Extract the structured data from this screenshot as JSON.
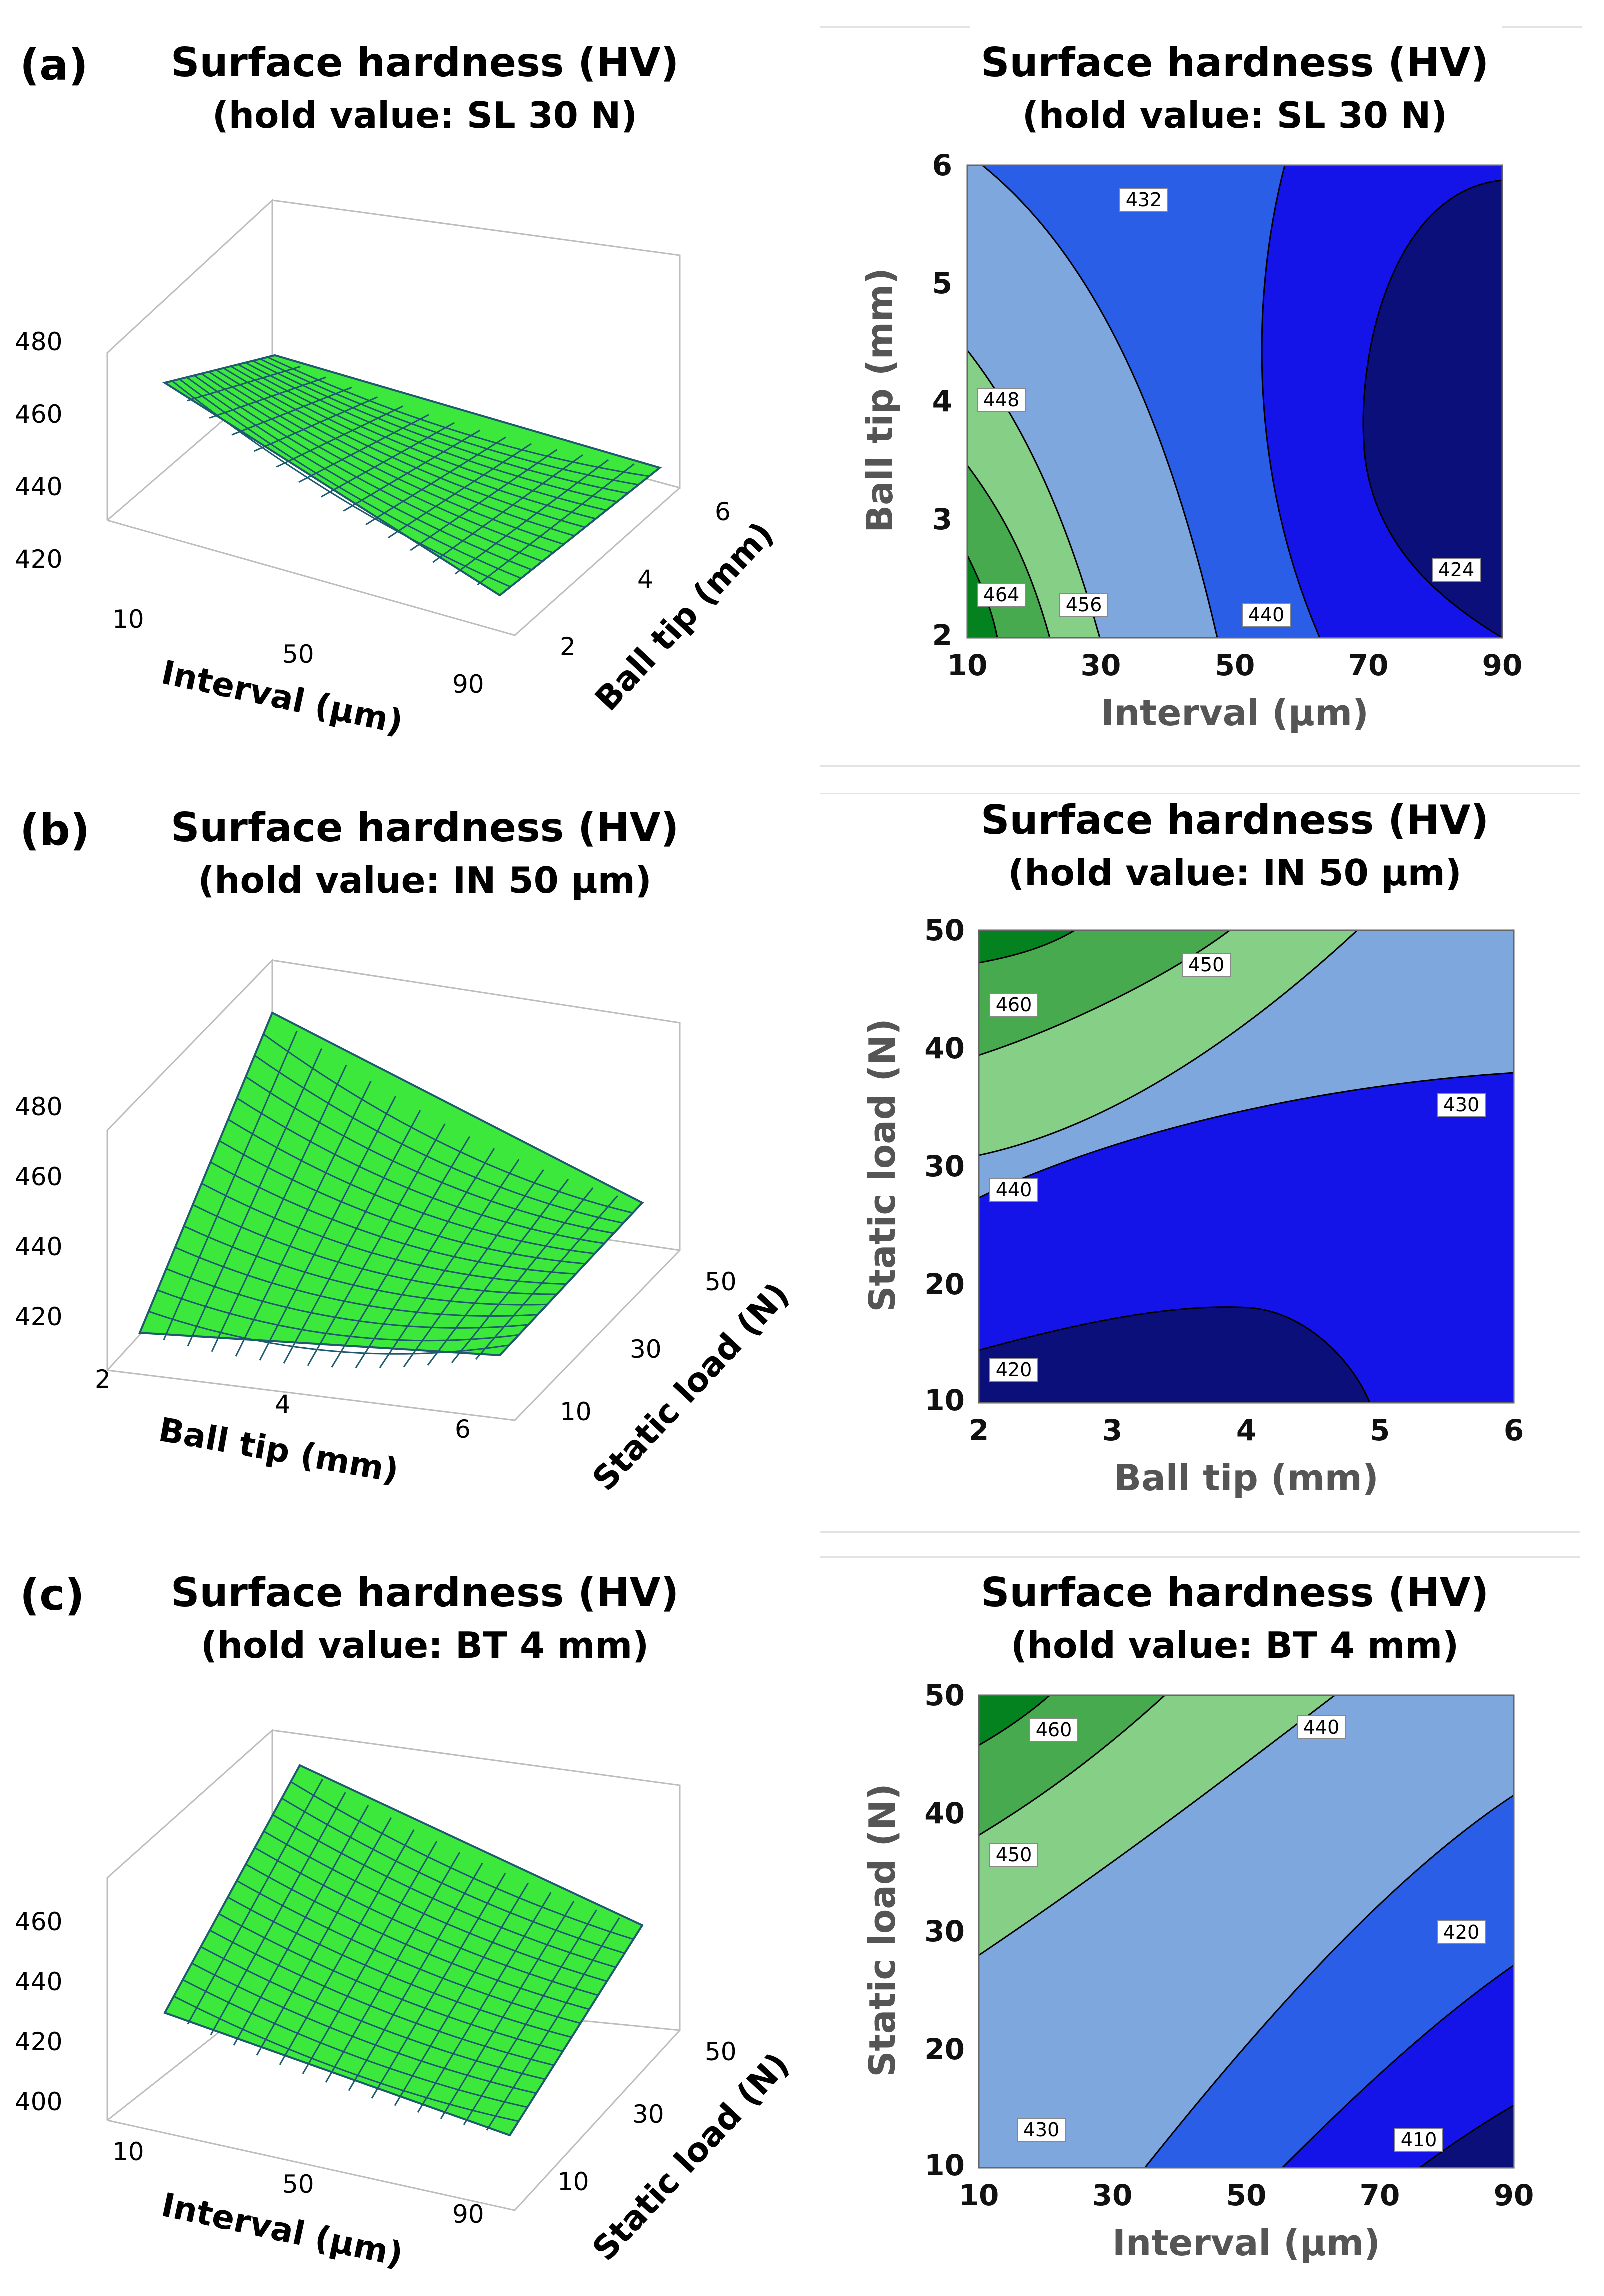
{
  "panels": {
    "a": {
      "letter": "(a)"
    },
    "b": {
      "letter": "(b)"
    },
    "c": {
      "letter": "(c)"
    }
  },
  "colors": {
    "surface_fill": "#3ce83c",
    "surface_grid": "#1e5a6e",
    "contour_levels_low_to_high": [
      "#0a0f7a",
      "#1414e8",
      "#2a5ee6",
      "#7da7dd",
      "#86cf86",
      "#48aa4e",
      "#058220"
    ]
  },
  "chart_data": [
    {
      "id": "a_surface",
      "type": "surface",
      "title": "Surface hardness (HV)",
      "subtitle": "(hold value: SL 30 N)",
      "xlabel": "Interval (µm)",
      "ylabel": "Ball tip (mm)",
      "x_ticks": [
        "10",
        "50",
        "90"
      ],
      "y_ticks": [
        "2",
        "4",
        "6"
      ],
      "z_ticks": [
        "420",
        "440",
        "460",
        "480"
      ],
      "xlim": [
        10,
        90
      ],
      "ylim": [
        2,
        6
      ],
      "zlim": [
        415,
        480
      ],
      "corner_z": {
        "x_min_y_min": 465,
        "x_max_y_min": 425,
        "x_min_y_max": 442,
        "x_max_y_max": 432
      }
    },
    {
      "id": "a_contour",
      "type": "contour",
      "title": "Surface hardness (HV)",
      "subtitle": "(hold value: SL 30 N)",
      "xlabel": "Interval (µm)",
      "ylabel": "Ball tip (mm)",
      "x_ticks": [
        "10",
        "30",
        "50",
        "70",
        "90"
      ],
      "y_ticks": [
        "2",
        "3",
        "4",
        "5",
        "6"
      ],
      "xlim": [
        10,
        90
      ],
      "ylim": [
        2,
        6
      ],
      "contour_labels": [
        "432",
        "448",
        "464",
        "456",
        "440",
        "424"
      ]
    },
    {
      "id": "b_surface",
      "type": "surface",
      "title": "Surface hardness (HV)",
      "subtitle": "(hold value: IN 50 µm)",
      "xlabel": "Ball tip (mm)",
      "ylabel": "Static load (N)",
      "x_ticks": [
        "2",
        "4",
        "6"
      ],
      "y_ticks": [
        "10",
        "30",
        "50"
      ],
      "z_ticks": [
        "420",
        "440",
        "460",
        "480"
      ],
      "xlim": [
        2,
        6
      ],
      "ylim": [
        10,
        50
      ],
      "zlim": [
        410,
        480
      ],
      "corner_z": {
        "x_min_y_min": 418,
        "x_max_y_min": 418,
        "x_min_y_max": 470,
        "x_max_y_max": 430
      }
    },
    {
      "id": "b_contour",
      "type": "contour",
      "title": "Surface hardness (HV)",
      "subtitle": "(hold value: IN 50 µm)",
      "xlabel": "Ball tip (mm)",
      "ylabel": "Static load (N)",
      "x_ticks": [
        "2",
        "3",
        "4",
        "5",
        "6"
      ],
      "y_ticks": [
        "10",
        "20",
        "30",
        "40",
        "50"
      ],
      "xlim": [
        2,
        6
      ],
      "ylim": [
        10,
        50
      ],
      "contour_labels": [
        "460",
        "450",
        "430",
        "440",
        "420"
      ]
    },
    {
      "id": "c_surface",
      "type": "surface",
      "title": "Surface hardness (HV)",
      "subtitle": "(hold value: BT 4 mm)",
      "xlabel": "Interval (µm)",
      "ylabel": "Static load (N)",
      "x_ticks": [
        "10",
        "50",
        "90"
      ],
      "y_ticks": [
        "10",
        "30",
        "50"
      ],
      "z_ticks": [
        "400",
        "420",
        "440",
        "460"
      ],
      "xlim": [
        10,
        90
      ],
      "ylim": [
        10,
        50
      ],
      "zlim": [
        395,
        480
      ],
      "corner_z": {
        "x_min_y_min": 436,
        "x_max_y_min": 405,
        "x_min_y_max": 470,
        "x_max_y_max": 440
      }
    },
    {
      "id": "c_contour",
      "type": "contour",
      "title": "Surface hardness (HV)",
      "subtitle": "(hold value: BT 4 mm)",
      "xlabel": "Interval (µm)",
      "ylabel": "Static load (N)",
      "x_ticks": [
        "10",
        "30",
        "50",
        "70",
        "90"
      ],
      "y_ticks": [
        "10",
        "20",
        "30",
        "40",
        "50"
      ],
      "xlim": [
        10,
        90
      ],
      "ylim": [
        10,
        50
      ],
      "contour_labels": [
        "460",
        "440",
        "450",
        "420",
        "430",
        "410"
      ]
    }
  ]
}
